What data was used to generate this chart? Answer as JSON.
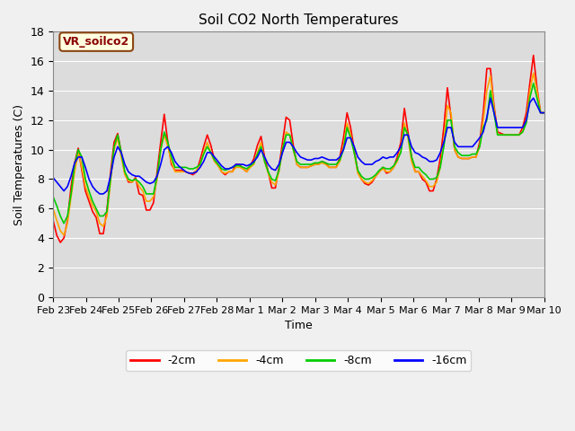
{
  "title": "Soil CO2 North Temperatures",
  "ylabel": "Soil Temperatures (C)",
  "xlabel": "Time",
  "annotation": "VR_soilco2",
  "ylim": [
    0,
    18
  ],
  "legend": [
    "-2cm",
    "-4cm",
    "-8cm",
    "-16cm"
  ],
  "colors": [
    "#ff0000",
    "#ffa500",
    "#00cc00",
    "#0000ff"
  ],
  "xtick_labels": [
    "Feb 23",
    "Feb 24",
    "Feb 25",
    "Feb 26",
    "Feb 27",
    "Feb 28",
    "Mar 1",
    "Mar 2",
    "Mar 3",
    "Mar 4",
    "Mar 5",
    "Mar 6",
    "Mar 7",
    "Mar 8",
    "Mar 9",
    "Mar 10"
  ],
  "t_2cm": [
    5.2,
    4.2,
    3.7,
    4.0,
    5.2,
    7.5,
    9.1,
    10.1,
    8.6,
    7.2,
    6.5,
    5.8,
    5.4,
    4.3,
    4.3,
    5.9,
    8.4,
    10.5,
    11.1,
    9.8,
    8.4,
    7.8,
    7.8,
    8.1,
    7.0,
    6.9,
    5.9,
    5.9,
    6.4,
    8.5,
    10.5,
    12.4,
    10.5,
    9.0,
    8.6,
    8.6,
    8.6,
    8.5,
    8.4,
    8.3,
    8.5,
    9.3,
    10.2,
    11.0,
    10.3,
    9.3,
    9.0,
    8.5,
    8.3,
    8.5,
    8.5,
    9.0,
    9.0,
    8.7,
    8.5,
    8.9,
    9.4,
    10.3,
    10.9,
    9.5,
    8.5,
    7.4,
    7.4,
    8.8,
    10.5,
    12.2,
    12.0,
    10.3,
    9.0,
    8.8,
    8.8,
    8.8,
    8.9,
    9.0,
    9.0,
    9.2,
    9.1,
    8.8,
    8.8,
    8.8,
    9.5,
    10.8,
    12.5,
    11.5,
    10.0,
    8.5,
    8.0,
    7.7,
    7.6,
    7.8,
    8.2,
    8.5,
    8.8,
    8.4,
    8.5,
    8.8,
    9.5,
    10.5,
    12.8,
    11.2,
    9.5,
    8.5,
    8.5,
    8.0,
    7.8,
    7.2,
    7.2,
    8.0,
    9.4,
    11.5,
    14.2,
    12.2,
    10.0,
    9.5,
    9.4,
    9.4,
    9.4,
    9.5,
    9.5,
    10.5,
    12.5,
    15.5,
    15.5,
    13.0,
    11.2,
    11.1,
    11.0,
    11.0,
    11.0,
    11.0,
    11.0,
    11.5,
    12.5,
    14.5,
    16.4,
    14.2,
    12.5,
    12.5
  ],
  "t_4cm": [
    6.0,
    5.2,
    4.5,
    4.2,
    5.0,
    6.8,
    8.5,
    9.8,
    8.8,
    7.5,
    6.8,
    6.2,
    5.8,
    5.0,
    4.8,
    5.5,
    7.8,
    10.0,
    10.8,
    9.5,
    8.3,
    7.9,
    7.8,
    8.0,
    7.5,
    7.2,
    6.5,
    6.5,
    6.8,
    8.0,
    10.0,
    11.0,
    10.2,
    9.2,
    8.5,
    8.5,
    8.5,
    8.5,
    8.4,
    8.4,
    8.6,
    9.0,
    9.8,
    10.5,
    9.8,
    9.2,
    8.9,
    8.5,
    8.4,
    8.5,
    8.5,
    8.8,
    8.8,
    8.7,
    8.5,
    8.8,
    9.0,
    9.8,
    10.5,
    9.2,
    8.4,
    7.8,
    7.6,
    8.5,
    10.0,
    11.2,
    11.0,
    10.0,
    9.0,
    8.8,
    8.8,
    8.8,
    8.9,
    9.0,
    9.0,
    9.1,
    9.0,
    8.8,
    8.8,
    8.8,
    9.2,
    10.2,
    11.8,
    11.0,
    9.8,
    8.4,
    8.0,
    7.8,
    7.7,
    7.9,
    8.2,
    8.5,
    8.7,
    8.5,
    8.5,
    8.8,
    9.2,
    10.0,
    11.8,
    10.8,
    9.2,
    8.5,
    8.5,
    8.2,
    7.9,
    7.5,
    7.5,
    7.8,
    8.8,
    10.5,
    13.0,
    12.5,
    10.0,
    9.5,
    9.4,
    9.4,
    9.4,
    9.5,
    9.5,
    10.2,
    12.0,
    14.0,
    15.0,
    12.8,
    11.0,
    11.0,
    11.0,
    11.0,
    11.0,
    11.0,
    11.0,
    11.2,
    12.0,
    14.0,
    15.2,
    14.0,
    12.5,
    12.5
  ],
  "t_8cm": [
    6.8,
    6.2,
    5.5,
    5.0,
    5.5,
    7.0,
    9.0,
    10.0,
    9.5,
    8.0,
    7.2,
    6.5,
    6.0,
    5.5,
    5.5,
    5.8,
    8.0,
    10.2,
    11.0,
    9.8,
    8.5,
    8.0,
    7.9,
    8.0,
    7.8,
    7.5,
    7.0,
    7.0,
    7.0,
    8.2,
    10.0,
    11.2,
    10.5,
    9.5,
    8.8,
    8.8,
    8.8,
    8.8,
    8.7,
    8.7,
    8.8,
    9.0,
    9.7,
    10.2,
    9.8,
    9.3,
    9.0,
    8.7,
    8.6,
    8.7,
    8.8,
    8.9,
    8.9,
    8.8,
    8.7,
    8.9,
    9.1,
    9.7,
    10.2,
    9.2,
    8.5,
    8.0,
    7.9,
    8.6,
    10.0,
    11.0,
    11.0,
    10.0,
    9.2,
    9.0,
    9.0,
    9.0,
    9.0,
    9.1,
    9.1,
    9.2,
    9.1,
    9.0,
    9.0,
    9.0,
    9.3,
    10.0,
    11.5,
    10.8,
    9.8,
    8.6,
    8.2,
    8.0,
    8.0,
    8.1,
    8.3,
    8.6,
    8.8,
    8.7,
    8.7,
    8.9,
    9.3,
    9.8,
    11.5,
    11.0,
    9.5,
    8.8,
    8.8,
    8.5,
    8.3,
    8.0,
    8.0,
    8.1,
    8.8,
    10.2,
    12.0,
    12.0,
    10.2,
    9.8,
    9.6,
    9.6,
    9.6,
    9.7,
    9.7,
    10.2,
    11.5,
    12.0,
    14.0,
    12.5,
    11.0,
    11.0,
    11.0,
    11.0,
    11.0,
    11.0,
    11.0,
    11.2,
    11.8,
    13.5,
    14.5,
    13.5,
    12.5,
    12.5
  ],
  "t_16cm": [
    8.1,
    7.8,
    7.5,
    7.2,
    7.5,
    8.2,
    9.1,
    9.5,
    9.5,
    8.8,
    8.0,
    7.5,
    7.2,
    7.0,
    7.0,
    7.2,
    8.2,
    9.5,
    10.2,
    9.8,
    9.0,
    8.5,
    8.3,
    8.2,
    8.2,
    8.0,
    7.8,
    7.7,
    7.8,
    8.2,
    9.0,
    10.0,
    10.2,
    9.8,
    9.2,
    8.9,
    8.7,
    8.5,
    8.4,
    8.4,
    8.5,
    8.8,
    9.2,
    9.8,
    9.8,
    9.5,
    9.2,
    8.9,
    8.7,
    8.7,
    8.8,
    9.0,
    9.0,
    9.0,
    8.9,
    9.0,
    9.2,
    9.5,
    10.0,
    9.5,
    9.0,
    8.7,
    8.6,
    9.0,
    9.8,
    10.5,
    10.5,
    10.2,
    9.8,
    9.5,
    9.4,
    9.3,
    9.3,
    9.4,
    9.4,
    9.5,
    9.4,
    9.3,
    9.3,
    9.3,
    9.5,
    10.0,
    10.8,
    10.8,
    10.2,
    9.5,
    9.2,
    9.0,
    9.0,
    9.0,
    9.2,
    9.3,
    9.5,
    9.4,
    9.5,
    9.5,
    9.8,
    10.2,
    11.0,
    11.0,
    10.2,
    9.8,
    9.7,
    9.5,
    9.4,
    9.2,
    9.2,
    9.3,
    9.8,
    10.5,
    11.5,
    11.5,
    10.5,
    10.2,
    10.2,
    10.2,
    10.2,
    10.2,
    10.5,
    10.8,
    11.2,
    12.2,
    13.5,
    12.5,
    11.5,
    11.5,
    11.5,
    11.5,
    11.5,
    11.5,
    11.5,
    11.5,
    12.0,
    13.2,
    13.5,
    13.0,
    12.5,
    12.5
  ]
}
